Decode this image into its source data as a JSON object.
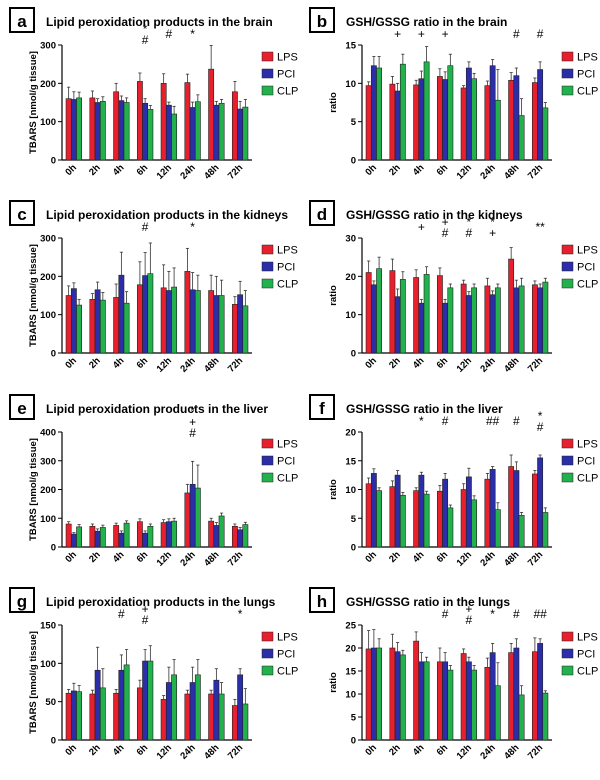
{
  "chart_data": [
    {
      "panel": "a",
      "type": "bar",
      "title": "Lipid peroxidation products in the brain",
      "ylabel": "TBARS [nmol/g tissue]",
      "ylim": [
        0,
        300
      ],
      "yticks": [
        "0",
        "100",
        "200",
        "300"
      ],
      "categories": [
        "0h",
        "2h",
        "4h",
        "6h",
        "12h",
        "24h",
        "48h",
        "72h"
      ],
      "series": [
        {
          "name": "LPS",
          "values": [
            160,
            162,
            178,
            205,
            200,
            202,
            237,
            178
          ],
          "errors": [
            30,
            18,
            22,
            22,
            25,
            22,
            62,
            27
          ]
        },
        {
          "name": "PCI",
          "values": [
            158,
            150,
            155,
            148,
            143,
            137,
            143,
            133
          ],
          "errors": [
            20,
            10,
            12,
            12,
            8,
            14,
            10,
            20
          ]
        },
        {
          "name": "CLP",
          "values": [
            162,
            153,
            150,
            132,
            120,
            152,
            148,
            138
          ],
          "errors": [
            15,
            12,
            12,
            10,
            20,
            18,
            10,
            20
          ]
        }
      ],
      "annotations": [
        {
          "category": "6h",
          "lines": [
            "*",
            "#"
          ]
        },
        {
          "category": "12h",
          "lines": [
            "#"
          ]
        },
        {
          "category": "24h",
          "lines": [
            "*"
          ]
        }
      ]
    },
    {
      "panel": "b",
      "type": "bar",
      "title": "GSH/GSSG ratio in the brain",
      "ylabel": "ratio",
      "ylim": [
        0,
        15
      ],
      "yticks": [
        "0",
        "5",
        "10",
        "15"
      ],
      "categories": [
        "0h",
        "2h",
        "4h",
        "6h",
        "12h",
        "24h",
        "48h",
        "72h"
      ],
      "series": [
        {
          "name": "LPS",
          "values": [
            9.7,
            9.9,
            9.8,
            10.9,
            9.4,
            9.7,
            10.4,
            10.1
          ],
          "errors": [
            0.5,
            1.0,
            0.6,
            1.0,
            0.3,
            0.6,
            1.0,
            0.6
          ]
        },
        {
          "name": "PCI",
          "values": [
            12.3,
            9.0,
            10.6,
            10.5,
            12.0,
            12.3,
            11.0,
            11.8
          ],
          "errors": [
            1.2,
            1.0,
            1.0,
            1.0,
            0.8,
            0.8,
            1.0,
            1.0
          ]
        },
        {
          "name": "CLP",
          "values": [
            12.0,
            12.5,
            12.8,
            12.3,
            10.6,
            7.8,
            5.8,
            6.8
          ],
          "errors": [
            1.5,
            1.3,
            2.0,
            1.5,
            0.7,
            4.0,
            2.2,
            0.7
          ]
        }
      ],
      "annotations": [
        {
          "category": "2h",
          "lines": [
            "+"
          ]
        },
        {
          "category": "4h",
          "lines": [
            "+"
          ]
        },
        {
          "category": "6h",
          "lines": [
            "+"
          ]
        },
        {
          "category": "48h",
          "lines": [
            "#"
          ]
        },
        {
          "category": "72h",
          "lines": [
            "#"
          ]
        }
      ]
    },
    {
      "panel": "c",
      "type": "bar",
      "title": "Lipid peroxidation products in the kidneys",
      "ylabel": "TBARS [nmol/g tissue]",
      "ylim": [
        0,
        300
      ],
      "yticks": [
        "0",
        "100",
        "200",
        "300"
      ],
      "categories": [
        "0h",
        "2h",
        "4h",
        "6h",
        "12h",
        "24h",
        "48h",
        "72h"
      ],
      "series": [
        {
          "name": "LPS",
          "values": [
            150,
            140,
            145,
            178,
            170,
            213,
            163,
            127
          ],
          "errors": [
            25,
            15,
            35,
            60,
            60,
            60,
            40,
            20
          ]
        },
        {
          "name": "PCI",
          "values": [
            168,
            165,
            203,
            202,
            163,
            165,
            150,
            152
          ],
          "errors": [
            15,
            20,
            60,
            60,
            50,
            45,
            50,
            35
          ]
        },
        {
          "name": "CLP",
          "values": [
            125,
            138,
            130,
            207,
            172,
            163,
            150,
            123
          ],
          "errors": [
            15,
            20,
            30,
            80,
            50,
            40,
            40,
            40
          ]
        }
      ],
      "annotations": [
        {
          "category": "6h",
          "lines": [
            "#"
          ]
        },
        {
          "category": "24h",
          "lines": [
            "*"
          ]
        }
      ]
    },
    {
      "panel": "d",
      "type": "bar",
      "title": "GSH/GSSG ratio in the kidneys",
      "ylabel": "ratio",
      "ylim": [
        0,
        30
      ],
      "yticks": [
        "0",
        "10",
        "20",
        "30"
      ],
      "categories": [
        "0h",
        "2h",
        "4h",
        "6h",
        "12h",
        "24h",
        "48h",
        "72h"
      ],
      "series": [
        {
          "name": "LPS",
          "values": [
            21.0,
            21.5,
            19.7,
            20.2,
            18.0,
            17.5,
            24.5,
            17.8
          ],
          "errors": [
            3,
            3,
            2,
            2,
            1,
            2,
            3,
            1
          ]
        },
        {
          "name": "PCI",
          "values": [
            17.8,
            14.7,
            13.0,
            13.0,
            15.0,
            15.2,
            17.0,
            17.0
          ],
          "errors": [
            1,
            2,
            1,
            1,
            1,
            1,
            2,
            1
          ]
        },
        {
          "name": "CLP",
          "values": [
            22.0,
            19.2,
            20.5,
            17.0,
            17.0,
            17.0,
            17.5,
            18.5
          ],
          "errors": [
            3,
            2,
            2,
            1,
            1,
            1,
            2,
            1
          ]
        }
      ],
      "annotations": [
        {
          "category": "4h",
          "lines": [
            "+"
          ]
        },
        {
          "category": "6h",
          "lines": [
            "+",
            "#"
          ]
        },
        {
          "category": "12h",
          "lines": [
            "*",
            "#"
          ]
        },
        {
          "category": "24h",
          "lines": [
            "*",
            "+"
          ]
        },
        {
          "category": "72h",
          "lines": [
            "**"
          ]
        }
      ]
    },
    {
      "panel": "e",
      "type": "bar",
      "title": "Lipid peroxidation products in the liver",
      "ylabel": "TBARS [nmol/g tissue]",
      "ylim": [
        0,
        400
      ],
      "yticks": [
        "0",
        "100",
        "200",
        "300",
        "400"
      ],
      "categories": [
        "0h",
        "2h",
        "4h",
        "6h",
        "12h",
        "24h",
        "48h",
        "72h"
      ],
      "series": [
        {
          "name": "LPS",
          "values": [
            80,
            72,
            75,
            88,
            85,
            188,
            90,
            72
          ],
          "errors": [
            8,
            8,
            8,
            10,
            10,
            30,
            10,
            8
          ]
        },
        {
          "name": "PCI",
          "values": [
            45,
            55,
            48,
            48,
            88,
            218,
            75,
            60
          ],
          "errors": [
            5,
            8,
            8,
            8,
            10,
            80,
            10,
            8
          ]
        },
        {
          "name": "CLP",
          "values": [
            70,
            68,
            83,
            72,
            90,
            205,
            108,
            78
          ],
          "errors": [
            8,
            8,
            8,
            8,
            10,
            80,
            10,
            8
          ]
        }
      ],
      "annotations": [
        {
          "category": "24h",
          "lines": [
            "*",
            "+",
            "#"
          ]
        }
      ]
    },
    {
      "panel": "f",
      "type": "bar",
      "title": "GSH/GSSG ratio in the liver",
      "ylabel": "ratio",
      "ylim": [
        0,
        20
      ],
      "yticks": [
        "0",
        "5",
        "10",
        "15",
        "20"
      ],
      "categories": [
        "0h",
        "2h",
        "4h",
        "6h",
        "12h",
        "24h",
        "48h",
        "72h"
      ],
      "series": [
        {
          "name": "LPS",
          "values": [
            11.0,
            10.5,
            9.8,
            9.7,
            10.0,
            11.8,
            14.0,
            12.7
          ],
          "errors": [
            1.0,
            1.0,
            0.5,
            1.0,
            1.0,
            1.0,
            2.0,
            0.6
          ]
        },
        {
          "name": "PCI",
          "values": [
            12.8,
            12.5,
            12.5,
            11.8,
            12.2,
            13.5,
            13.3,
            15.5
          ],
          "errors": [
            0.8,
            0.8,
            0.5,
            1.0,
            1.5,
            0.5,
            1.5,
            0.5
          ]
        },
        {
          "name": "CLP",
          "values": [
            9.8,
            9.0,
            9.2,
            6.8,
            8.2,
            6.5,
            5.5,
            6.0
          ],
          "errors": [
            0.5,
            0.5,
            0.5,
            0.5,
            0.7,
            1.2,
            0.5,
            0.8
          ]
        }
      ],
      "annotations": [
        {
          "category": "4h",
          "lines": [
            "*"
          ]
        },
        {
          "category": "6h",
          "lines": [
            "#"
          ]
        },
        {
          "category": "24h",
          "lines": [
            "##"
          ]
        },
        {
          "category": "48h",
          "lines": [
            "#"
          ]
        },
        {
          "category": "72h",
          "lines": [
            "*",
            "#"
          ]
        }
      ]
    },
    {
      "panel": "g",
      "type": "bar",
      "title": "Lipid peroxidation products in the lungs",
      "ylabel": "TBARS [nmol/g tissue]",
      "ylim": [
        0,
        150
      ],
      "yticks": [
        "0",
        "50",
        "100",
        "150"
      ],
      "categories": [
        "0h",
        "2h",
        "4h",
        "6h",
        "12h",
        "24h",
        "48h",
        "72h"
      ],
      "series": [
        {
          "name": "LPS",
          "values": [
            61,
            60,
            61,
            68,
            53,
            60,
            60,
            45
          ],
          "errors": [
            5,
            5,
            5,
            10,
            5,
            5,
            5,
            8
          ]
        },
        {
          "name": "PCI",
          "values": [
            64,
            91,
            91,
            103,
            75,
            75,
            78,
            85
          ],
          "errors": [
            10,
            30,
            20,
            15,
            20,
            20,
            15,
            8
          ]
        },
        {
          "name": "CLP",
          "values": [
            63,
            68,
            98,
            103,
            85,
            85,
            60,
            47
          ],
          "errors": [
            8,
            25,
            20,
            20,
            20,
            20,
            15,
            20
          ]
        }
      ],
      "annotations": [
        {
          "category": "4h",
          "lines": [
            "#"
          ]
        },
        {
          "category": "6h",
          "lines": [
            "+",
            "#"
          ]
        },
        {
          "category": "72h",
          "lines": [
            "*"
          ]
        }
      ]
    },
    {
      "panel": "h",
      "type": "bar",
      "title": "GSH/GSSG ratio in the lungs",
      "ylabel": "ratio",
      "ylim": [
        0,
        25
      ],
      "yticks": [
        "0",
        "5",
        "10",
        "15",
        "20",
        "25"
      ],
      "categories": [
        "0h",
        "2h",
        "4h",
        "6h",
        "12h",
        "24h",
        "48h",
        "72h"
      ],
      "series": [
        {
          "name": "LPS",
          "values": [
            19.8,
            20.0,
            21.5,
            17.0,
            18.8,
            15.8,
            19.0,
            19.2
          ],
          "errors": [
            4,
            3,
            2,
            3,
            1,
            2,
            2,
            3
          ]
        },
        {
          "name": "PCI",
          "values": [
            20.0,
            19.2,
            17.0,
            17.0,
            17.0,
            19.0,
            20.0,
            21.0
          ],
          "errors": [
            4,
            2,
            2,
            2,
            1,
            2,
            2,
            1
          ]
        },
        {
          "name": "CLP",
          "values": [
            20.0,
            18.5,
            17.0,
            15.2,
            15.2,
            11.8,
            9.8,
            10.2
          ],
          "errors": [
            2,
            1,
            1,
            1,
            1,
            5,
            2,
            0.5
          ]
        }
      ],
      "annotations": [
        {
          "category": "6h",
          "lines": [
            "#"
          ]
        },
        {
          "category": "12h",
          "lines": [
            "+",
            "#"
          ]
        },
        {
          "category": "24h",
          "lines": [
            "*"
          ]
        },
        {
          "category": "48h",
          "lines": [
            "#"
          ]
        },
        {
          "category": "72h",
          "lines": [
            "##"
          ]
        }
      ]
    }
  ],
  "legend": [
    "LPS",
    "PCI",
    "CLP"
  ],
  "colors": {
    "LPS": "#e8202e",
    "PCI": "#2b2ea8",
    "CLP": "#22b14c"
  }
}
